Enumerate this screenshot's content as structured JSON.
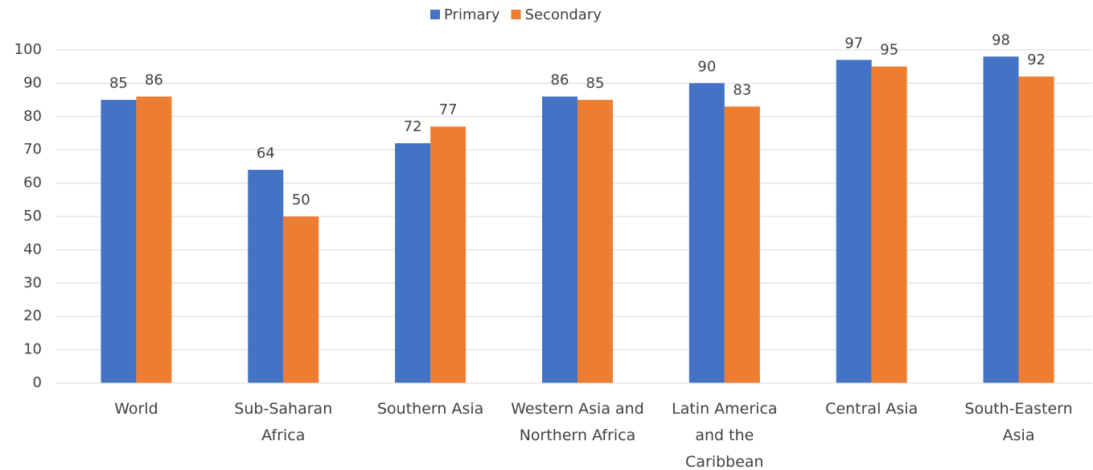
{
  "chart_data": {
    "type": "bar",
    "categories": [
      "World",
      "Sub-Saharan Africa",
      "Southern Asia",
      "Western Asia and Northern Africa",
      "Latin America and the Caribbean",
      "Central Asia",
      "South-Eastern Asia"
    ],
    "series": [
      {
        "name": "Primary",
        "color": "#4472c4",
        "values": [
          85,
          64,
          72,
          86,
          90,
          97,
          98
        ]
      },
      {
        "name": "Secondary",
        "color": "#ed7d31",
        "values": [
          86,
          50,
          77,
          85,
          83,
          95,
          92
        ]
      }
    ],
    "ylim": [
      0,
      100
    ],
    "yticks": [
      0,
      10,
      20,
      30,
      40,
      50,
      60,
      70,
      80,
      90,
      100
    ],
    "grid": true,
    "legend": "top"
  }
}
